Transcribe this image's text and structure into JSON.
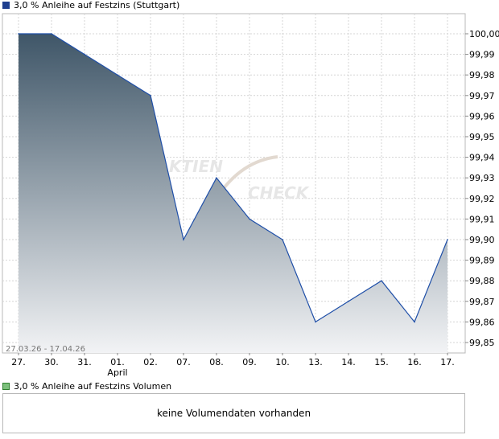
{
  "legend": {
    "price_label": "3,0 % Anleihe auf Festzins (Stuttgart)",
    "volume_label": "3,0 % Anleihe auf Festzins Volumen"
  },
  "colors": {
    "line": "#1f4fa8",
    "area_top": "#3f5668",
    "area_bottom": "#f2f3f5",
    "grid": "#d4d4d4",
    "frame": "#b8b8b8"
  },
  "chart_data": {
    "type": "area",
    "series": [
      {
        "values": [
          100.0,
          100.0,
          99.99,
          99.98,
          99.97,
          99.9,
          99.93,
          99.91,
          99.9,
          99.86,
          99.87,
          99.88,
          99.86,
          99.9
        ]
      }
    ],
    "x": [
      "27.",
      "30.",
      "31.",
      "01.",
      "02.",
      "07.",
      "08.",
      "09.",
      "10.",
      "13.",
      "14.",
      "15.",
      "16.",
      "17."
    ],
    "x_sublabels": [
      "",
      "",
      "",
      "April",
      "",
      "",
      "",
      "",
      "",
      "",
      "",
      "",
      "",
      ""
    ],
    "y_ticks": [
      "100,00",
      "99,99",
      "99,98",
      "99,97",
      "99,96",
      "99,95",
      "99,94",
      "99,93",
      "99,92",
      "99,91",
      "99,90",
      "99,89",
      "99,88",
      "99,87",
      "99,86",
      "99,85"
    ],
    "ylim": [
      99.85,
      100.0
    ],
    "range_text": "27.03.26 - 17.04.26",
    "grid": true,
    "watermark": [
      "KTIEN",
      "CHECK"
    ]
  },
  "volume": {
    "message": "keine Volumendaten vorhanden"
  }
}
